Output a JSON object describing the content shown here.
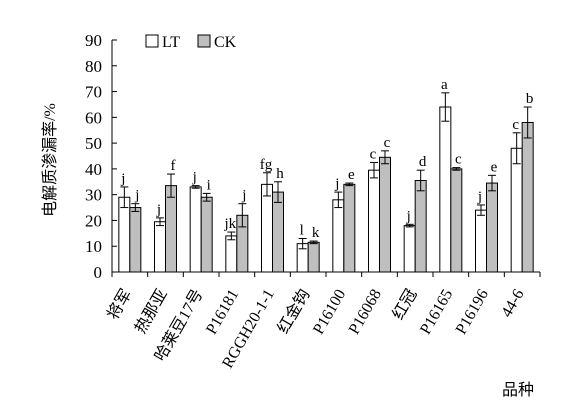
{
  "chart_data": {
    "type": "bar",
    "xlabel": "品种",
    "ylabel": "电解质渗漏率/%",
    "ylim": [
      0,
      90
    ],
    "yticks": [
      0,
      10,
      20,
      30,
      40,
      50,
      60,
      70,
      80,
      90
    ],
    "grid": false,
    "legend_position": "top-left",
    "categories": [
      "将军",
      "热那亚",
      "哈莱豆17号",
      "P16181",
      "RGGH20-1-1",
      "红金钩",
      "P16100",
      "P16068",
      "红冠",
      "P16165",
      "P16196",
      "44-6"
    ],
    "series": [
      {
        "name": "LT",
        "color": "#ffffff",
        "values": [
          29,
          19.5,
          33,
          14,
          34,
          11,
          28,
          39.5,
          18,
          64,
          24,
          48
        ],
        "errors": [
          4,
          1.5,
          0.5,
          1.5,
          4.5,
          2,
          3,
          3,
          0.5,
          5.5,
          2,
          6
        ],
        "labels": [
          "j",
          "j",
          "j",
          "jk",
          "fg",
          "l",
          "j",
          "c",
          "j",
          "a",
          "j",
          "c"
        ]
      },
      {
        "name": "CK",
        "color": "#bfbfbf",
        "values": [
          25,
          33.5,
          29,
          22,
          31,
          11.5,
          34,
          44.5,
          35.5,
          40,
          34.5,
          58
        ],
        "errors": [
          1.5,
          4.5,
          1.5,
          4.5,
          4,
          0.5,
          0.5,
          2.5,
          4,
          0.5,
          3,
          6
        ],
        "labels": [
          "j",
          "f",
          "i",
          "j",
          "h",
          "k",
          "e",
          "c",
          "d",
          "c",
          "e",
          "b"
        ]
      }
    ]
  }
}
